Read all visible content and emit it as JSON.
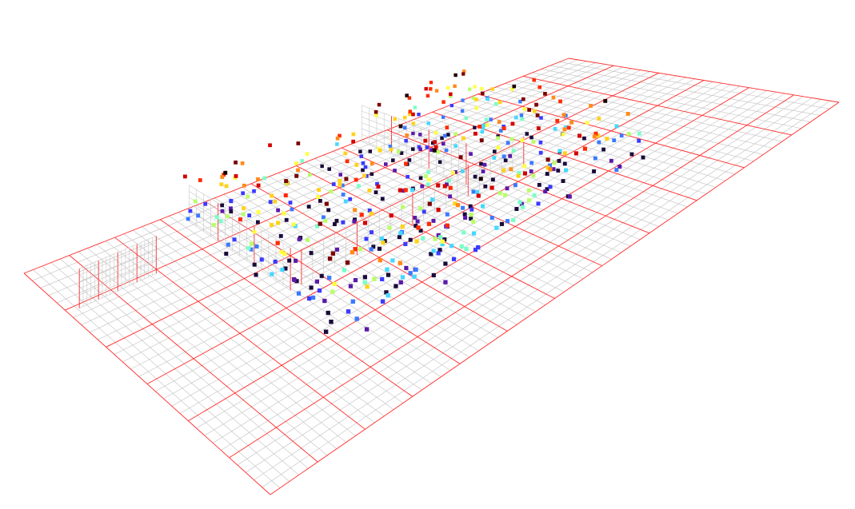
{
  "scene": {
    "background": "#ffffff",
    "major_grid_color": "#ff2a2a",
    "minor_grid_color": "#c8c8c8"
  },
  "chart_data": {
    "type": "scatter",
    "title": "",
    "xlabel": "",
    "ylabel": "",
    "zlabel": "",
    "grid": true,
    "dimensions": 3,
    "x_range": [
      0,
      1
    ],
    "y_range": [
      0,
      1
    ],
    "z_range": [
      0,
      0.5
    ],
    "colormap": "hot-to-cool",
    "colormap_stops": [
      "#1a0000",
      "#7a0000",
      "#d40000",
      "#ff2a00",
      "#ff8a1a",
      "#ffd21a",
      "#ffff44",
      "#b8ff6a",
      "#7affc8",
      "#44d8ff",
      "#3a7aff",
      "#3a3aff",
      "#5a1aa8",
      "#1a0a3a"
    ],
    "point_count": 520,
    "points_note_removed": true,
    "points": []
  }
}
